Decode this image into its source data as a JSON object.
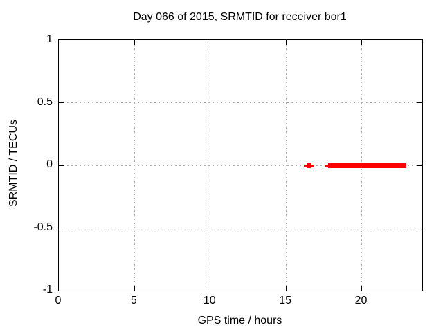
{
  "window": {
    "background_color": "#ffffff",
    "text_color": "#000000"
  },
  "chart_data": {
    "type": "scatter",
    "title": "Day 066 of 2015, SRMTID for receiver bor1",
    "xlabel": "GPS time / hours",
    "ylabel": "SRMTID / TECUs",
    "xlim": [
      0,
      24
    ],
    "ylim": [
      -1,
      1
    ],
    "xticks": [
      0,
      5,
      10,
      15,
      20
    ],
    "yticks": [
      -1,
      -0.5,
      0,
      0.5,
      1
    ],
    "grid": true,
    "grid_style": "dotted",
    "grid_color": "#b0b0b0",
    "frame_color": "#000000",
    "legend": "none",
    "series": [
      {
        "name": "SRMTID",
        "color": "#ff0000",
        "marker": "filled-square",
        "point_runs": [
          {
            "y": 0,
            "x_start": 16.2,
            "x_end": 16.82,
            "density": "sparse"
          },
          {
            "y": 0,
            "x_start": 16.41,
            "x_end": 16.69,
            "density": "dense"
          },
          {
            "y": 0,
            "x_start": 17.62,
            "x_end": 17.82,
            "density": "sparse"
          },
          {
            "y": 0,
            "x_start": 17.8,
            "x_end": 22.95,
            "density": "dense"
          }
        ]
      }
    ]
  }
}
